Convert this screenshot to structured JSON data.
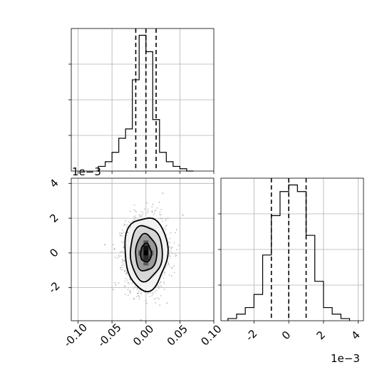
{
  "chart_data": [
    {
      "type": "histogram",
      "panel": "top-left (x marginal)",
      "xlim": [
        -0.11,
        0.1
      ],
      "xticks": [
        "-0.10",
        "-0.05",
        "0.00",
        "0.05",
        "0.10"
      ],
      "bin_edges": [
        -0.07,
        -0.06,
        -0.05,
        -0.04,
        -0.03,
        -0.02,
        -0.01,
        0.0,
        0.01,
        0.02,
        0.03,
        0.04,
        0.05,
        0.06,
        0.07
      ],
      "counts": [
        2,
        4,
        8,
        14,
        18,
        39,
        58,
        51,
        22,
        8,
        4,
        2,
        1,
        0
      ],
      "quantiles": [
        -0.015,
        0.0,
        0.015
      ],
      "grid": true
    },
    {
      "type": "histogram",
      "panel": "bottom-right (y marginal)",
      "xlim": [
        -0.0039,
        0.0043
      ],
      "xticks": [
        "-2",
        "0",
        "2",
        "4"
      ],
      "xtick_values": [
        -0.002,
        0.0,
        0.002,
        0.004
      ],
      "offset_text": "1e−3",
      "bin_edges": [
        -0.0035,
        -0.003,
        -0.0025,
        -0.002,
        -0.0015,
        -0.001,
        -0.0005,
        0.0,
        0.0005,
        0.001,
        0.0015,
        0.002,
        0.0025,
        0.003,
        0.0035
      ],
      "counts": [
        1,
        3,
        6,
        12,
        30,
        48,
        59,
        62,
        59,
        39,
        18,
        6,
        3,
        1
      ],
      "quantiles": [
        -0.001,
        0.0,
        0.001
      ],
      "grid": true
    },
    {
      "type": "scatter",
      "panel": "bottom-left (2D density)",
      "xlim": [
        -0.11,
        0.1
      ],
      "ylim": [
        -0.0039,
        0.0043
      ],
      "xticks": [
        "-0.10",
        "-0.05",
        "0.00",
        "0.05",
        "0.10"
      ],
      "yticks": [
        "-2",
        "0",
        "2",
        "4"
      ],
      "ytick_values": [
        -0.002,
        0.0,
        0.002,
        0.004
      ],
      "offset_text": "1e−3",
      "center": [
        0.0,
        0.0
      ],
      "sigma": [
        0.015,
        0.001
      ],
      "n_points": 2500,
      "contour_levels_sigma": [
        0.5,
        1.0,
        1.5,
        2.0
      ],
      "grid": true
    }
  ]
}
